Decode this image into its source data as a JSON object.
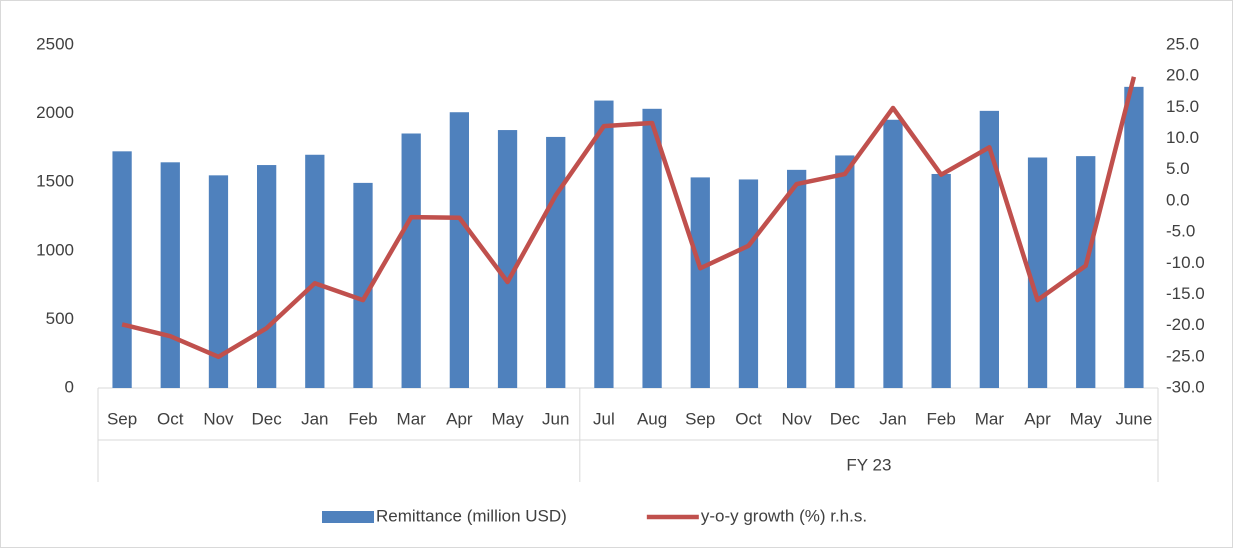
{
  "chart_data": {
    "type": "bar-line",
    "categories": [
      "Sep",
      "Oct",
      "Nov",
      "Dec",
      "Jan",
      "Feb",
      "Mar",
      "Apr",
      "May",
      "Jun",
      "Jul",
      "Aug",
      "Sep",
      "Oct",
      "Nov",
      "Dec",
      "Jan",
      "Feb",
      "Mar",
      "Apr",
      "May",
      "June"
    ],
    "group_labels": [
      null,
      "FY 23"
    ],
    "group_spans": [
      10,
      12
    ],
    "series": [
      {
        "name": "Remittance (million USD)",
        "type": "bar",
        "color": "#4f81bd",
        "values": [
          1725,
          1645,
          1550,
          1625,
          1700,
          1495,
          1855,
          2010,
          1880,
          1830,
          2095,
          2035,
          1535,
          1520,
          1590,
          1695,
          1955,
          1560,
          2020,
          1680,
          1690,
          2195
        ]
      },
      {
        "name": "y-o-y growth (%) r.h.s.",
        "type": "line",
        "axis": "y2",
        "color": "#c0504d",
        "values": [
          -19.8,
          -21.7,
          -25.0,
          -20.4,
          -13.2,
          -15.9,
          -2.6,
          -2.7,
          -13.0,
          0.9,
          12.0,
          12.5,
          -10.8,
          -7.2,
          2.7,
          4.3,
          14.9,
          4.2,
          8.6,
          -15.9,
          -10.4,
          19.9
        ]
      }
    ],
    "ylim": [
      0,
      2500
    ],
    "yticks": [
      0,
      500,
      1000,
      1500,
      2000,
      2500
    ],
    "y2lim": [
      -30,
      25
    ],
    "y2ticks": [
      {
        "value": -30,
        "label": "-30.0"
      },
      {
        "value": -25,
        "label": "-25.0"
      },
      {
        "value": -20,
        "label": "-20.0"
      },
      {
        "value": -15,
        "label": "-15.0"
      },
      {
        "value": -10,
        "label": "-10.0"
      },
      {
        "value": -5,
        "label": "-5.0"
      },
      {
        "value": 0,
        "label": "0.0"
      },
      {
        "value": 5,
        "label": "5.0"
      },
      {
        "value": 10,
        "label": "10.0"
      },
      {
        "value": 15,
        "label": "15.0"
      },
      {
        "value": 20,
        "label": "20.0"
      },
      {
        "value": 25,
        "label": "25.0"
      }
    ],
    "grid": false,
    "legend": "bottom"
  }
}
